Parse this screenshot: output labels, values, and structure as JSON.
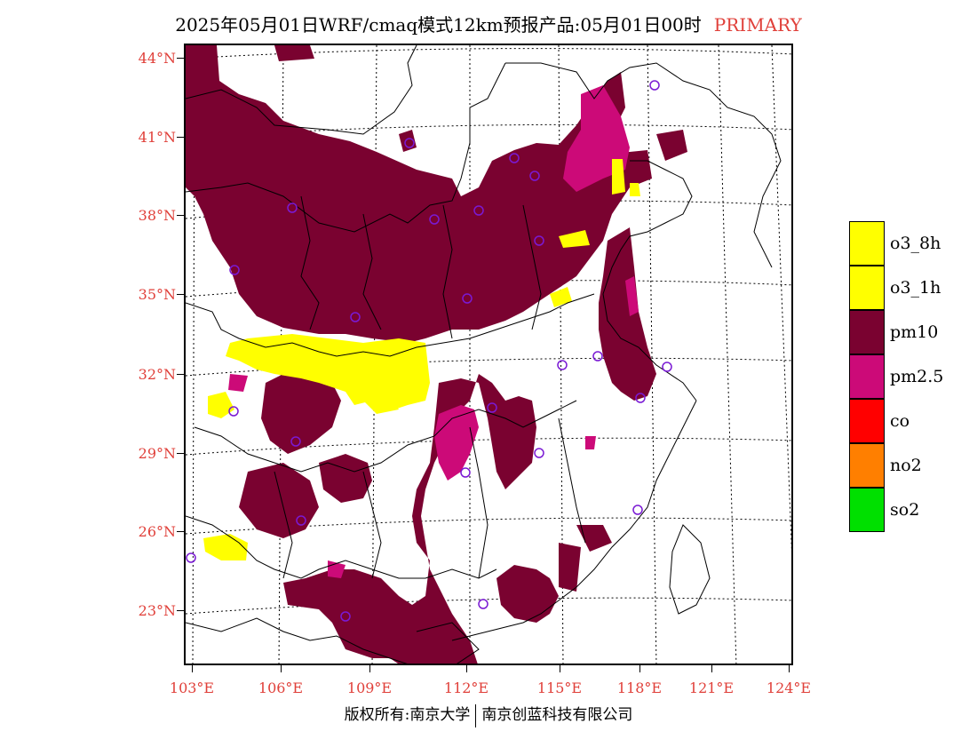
{
  "title": {
    "main": "2025年05月01日WRF/cmaq模式12km预报产品:05月01日00时",
    "tag": "PRIMARY",
    "tag_color": "#e0403a"
  },
  "axes": {
    "y_labels": [
      "44°N",
      "41°N",
      "38°N",
      "35°N",
      "32°N",
      "29°N",
      "26°N",
      "23°N"
    ],
    "x_labels": [
      "103°E",
      "106°E",
      "109°E",
      "112°E",
      "115°E",
      "118°E",
      "121°E",
      "124°E"
    ],
    "label_color": "#e0403a"
  },
  "legend": [
    {
      "label": "o3_8h",
      "color": "#ffff00"
    },
    {
      "label": "o3_1h",
      "color": "#ffff00"
    },
    {
      "label": "pm10",
      "color": "#7a0230"
    },
    {
      "label": "pm2.5",
      "color": "#cc0a78"
    },
    {
      "label": "co",
      "color": "#ff0000"
    },
    {
      "label": "no2",
      "color": "#ff7f00"
    },
    {
      "label": "so2",
      "color": "#00e000"
    }
  ],
  "copyright": {
    "left": "版权所有:南京大学",
    "right": "南京创蓝科技有限公司"
  }
}
